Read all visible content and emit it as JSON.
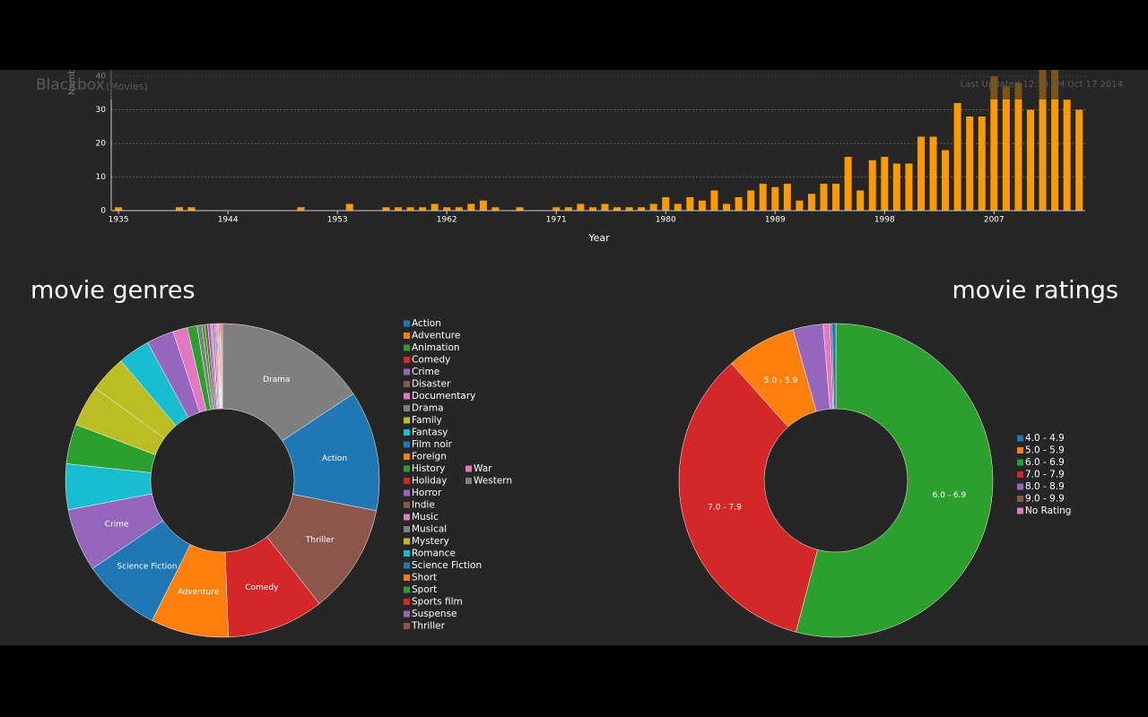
{
  "header": {
    "title": "Blackbox",
    "subtitle": "(Movies)",
    "updated": "Last Updated 12:38 PM Oct 17 2014"
  },
  "chart_data": [
    {
      "type": "bar",
      "x_label": "Year",
      "y_label": "Number",
      "color": "#ff9900",
      "grid": true,
      "x": [
        1935,
        1936,
        1937,
        1938,
        1939,
        1940,
        1941,
        1942,
        1943,
        1944,
        1945,
        1946,
        1947,
        1948,
        1949,
        1950,
        1951,
        1952,
        1953,
        1954,
        1955,
        1956,
        1957,
        1958,
        1959,
        1960,
        1961,
        1962,
        1963,
        1964,
        1965,
        1966,
        1967,
        1968,
        1969,
        1970,
        1971,
        1972,
        1973,
        1974,
        1975,
        1976,
        1977,
        1978,
        1979,
        1980,
        1981,
        1982,
        1983,
        1984,
        1985,
        1986,
        1987,
        1988,
        1989,
        1990,
        1991,
        1992,
        1993,
        1994,
        1995,
        1996,
        1997,
        1998,
        1999,
        2000,
        2001,
        2002,
        2003,
        2004,
        2005,
        2006,
        2007,
        2008,
        2009,
        2010,
        2011,
        2012,
        2013,
        2014
      ],
      "values": [
        1,
        0,
        0,
        0,
        0,
        1,
        1,
        0,
        0,
        0,
        0,
        0,
        0,
        0,
        0,
        1,
        0,
        0,
        0,
        2,
        0,
        0,
        1,
        1,
        1,
        1,
        2,
        1,
        1,
        2,
        3,
        1,
        0,
        1,
        0,
        0,
        1,
        1,
        2,
        1,
        2,
        1,
        1,
        1,
        2,
        4,
        2,
        4,
        3,
        6,
        2,
        4,
        6,
        8,
        7,
        8,
        3,
        5,
        8,
        8,
        16,
        6,
        15,
        16,
        14,
        14,
        22,
        22,
        18,
        32,
        28,
        28,
        40,
        37,
        38,
        30,
        43,
        43,
        33,
        30
      ],
      "xlim": [
        1934.4,
        2014.5
      ],
      "xticks": [
        1935,
        1944,
        1953,
        1962,
        1971,
        1980,
        1989,
        1998,
        2007
      ],
      "ylim": [
        0,
        40
      ],
      "yticks": [
        0,
        10,
        20,
        30,
        40
      ]
    },
    {
      "type": "donut",
      "title": "movie genres",
      "categories": [
        "Drama",
        "Action",
        "Thriller",
        "Comedy",
        "Adventure",
        "Science Fiction",
        "Crime",
        null,
        null,
        null,
        null,
        null,
        null,
        null,
        null,
        null,
        null,
        null,
        null,
        null,
        null,
        null,
        null,
        null,
        null,
        null,
        null,
        null
      ],
      "values": [
        15.7,
        12.4,
        11.3,
        10,
        8,
        8.1,
        6.5,
        4.7,
        4.1,
        4.2,
        3.8,
        3.3,
        2.8,
        1.5,
        1.0,
        0.5,
        0.3,
        0.3,
        0.3,
        0.2,
        0.2,
        0.2,
        0.1,
        0.1,
        0.1,
        0.1,
        0.1,
        0.1
      ],
      "colors": [
        "#7f7f7f",
        "#1f77b4",
        "#8c564b",
        "#d62728",
        "#ff7f0e",
        "#1f77b4",
        "#9467bd",
        "#17becf",
        "#2ca02c",
        "#bcbd22",
        "#bcbd22",
        "#17becf",
        "#9467bd",
        "#e377c2",
        "#2ca02c",
        "#7f7f7f",
        "#2ca02c",
        "#8c564b",
        "#9467bd",
        "#e377c2",
        "#7f7f7f",
        "#e377c2",
        "#1f77b4",
        "#ff7f0e",
        "#d62728",
        "#ff7f0e",
        "#d62728",
        "#8c564b"
      ],
      "legend": [
        {
          "name": "Action",
          "color": "#1f77b4"
        },
        {
          "name": "Adventure",
          "color": "#ff7f0e"
        },
        {
          "name": "Animation",
          "color": "#2ca02c"
        },
        {
          "name": "Comedy",
          "color": "#d62728"
        },
        {
          "name": "Crime",
          "color": "#9467bd"
        },
        {
          "name": "Disaster",
          "color": "#8c564b"
        },
        {
          "name": "Documentary",
          "color": "#e377c2"
        },
        {
          "name": "Drama",
          "color": "#7f7f7f"
        },
        {
          "name": "Family",
          "color": "#bcbd22"
        },
        {
          "name": "Fantasy",
          "color": "#17becf"
        },
        {
          "name": "Film noir",
          "color": "#1f77b4"
        },
        {
          "name": "Foreign",
          "color": "#ff7f0e"
        },
        {
          "name": "History",
          "color": "#2ca02c"
        },
        {
          "name": "Holiday",
          "color": "#d62728"
        },
        {
          "name": "Horror",
          "color": "#9467bd"
        },
        {
          "name": "Indie",
          "color": "#8c564b"
        },
        {
          "name": "Music",
          "color": "#e377c2"
        },
        {
          "name": "Musical",
          "color": "#7f7f7f"
        },
        {
          "name": "Mystery",
          "color": "#bcbd22"
        },
        {
          "name": "Romance",
          "color": "#17becf"
        },
        {
          "name": "Science Fiction",
          "color": "#1f77b4"
        },
        {
          "name": "Short",
          "color": "#ff7f0e"
        },
        {
          "name": "Sport",
          "color": "#2ca02c"
        },
        {
          "name": "Sports film",
          "color": "#d62728"
        },
        {
          "name": "Suspense",
          "color": "#9467bd"
        },
        {
          "name": "Thriller",
          "color": "#8c564b"
        },
        {
          "name": "War",
          "color": "#e377c2"
        },
        {
          "name": "Western",
          "color": "#7f7f7f"
        }
      ]
    },
    {
      "type": "donut",
      "title": "movie ratings",
      "categories": [
        "6.0 - 6.9",
        "7.0 - 7.9",
        "5.0 - 5.9",
        null,
        null,
        null,
        null
      ],
      "values": [
        54.1,
        34.3,
        7.2,
        3.1,
        0.7,
        0.2,
        0.4
      ],
      "colors": [
        "#2ca02c",
        "#d62728",
        "#ff7f0e",
        "#9467bd",
        "#e377c2",
        "#8c564b",
        "#1f77b4"
      ],
      "legend": [
        {
          "name": "4.0 - 4.9",
          "color": "#1f77b4"
        },
        {
          "name": "5.0 - 5.9",
          "color": "#ff7f0e"
        },
        {
          "name": "6.0 - 6.9",
          "color": "#2ca02c"
        },
        {
          "name": "7.0 - 7.9",
          "color": "#d62728"
        },
        {
          "name": "8.0 - 8.9",
          "color": "#9467bd"
        },
        {
          "name": "9.0 - 9.9",
          "color": "#8c564b"
        },
        {
          "name": "No Rating",
          "color": "#e377c2"
        }
      ]
    }
  ]
}
